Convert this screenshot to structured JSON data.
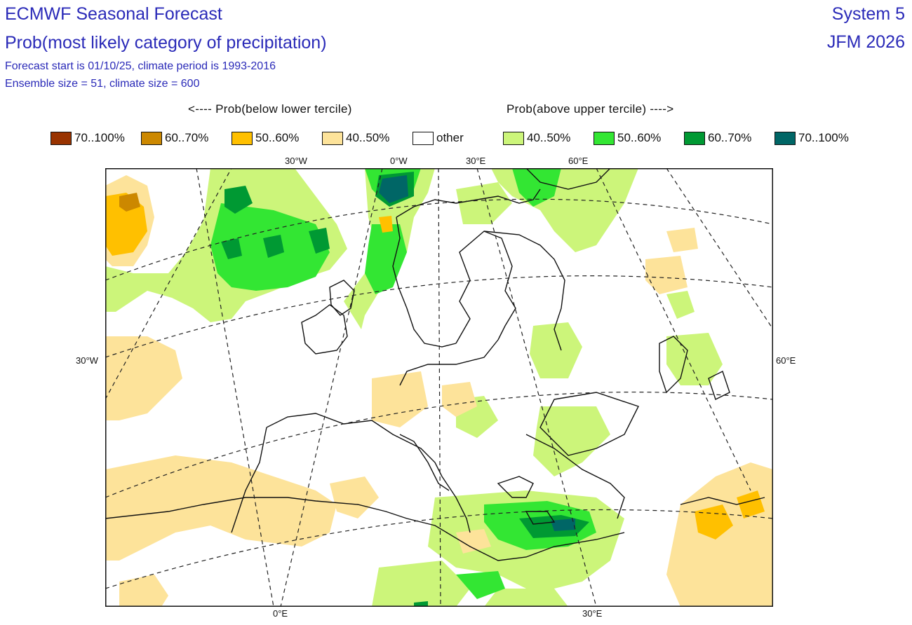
{
  "header": {
    "title": "ECMWF Seasonal Forecast",
    "subtitle": "Prob(most likely category of precipitation)",
    "info_line1": "Forecast start is 01/10/25, climate period is 1993-2016",
    "info_line2": "Ensemble size = 51, climate size = 600",
    "system": "System 5",
    "season": "JFM 2026"
  },
  "legend": {
    "below_title": "<---- Prob(below lower tercile)",
    "above_title": "Prob(above upper tercile) ---->",
    "items": [
      {
        "label": "70..100%",
        "color": "#993300"
      },
      {
        "label": "60..70%",
        "color": "#cc8800"
      },
      {
        "label": "50..60%",
        "color": "#ffc000"
      },
      {
        "label": "40..50%",
        "color": "#fde39a"
      },
      {
        "label": "other",
        "color": "#ffffff"
      },
      {
        "label": "40..50%",
        "color": "#ccf57a"
      },
      {
        "label": "50..60%",
        "color": "#33e633"
      },
      {
        "label": "60..70%",
        "color": "#009933"
      },
      {
        "label": "70..100%",
        "color": "#006666"
      }
    ]
  },
  "map": {
    "top_labels": [
      "30°W",
      "0°W",
      "30°E",
      "60°E"
    ],
    "bottom_labels": [
      "0°E",
      "30°E"
    ],
    "left_label": "30°W",
    "right_label": "60°E"
  }
}
